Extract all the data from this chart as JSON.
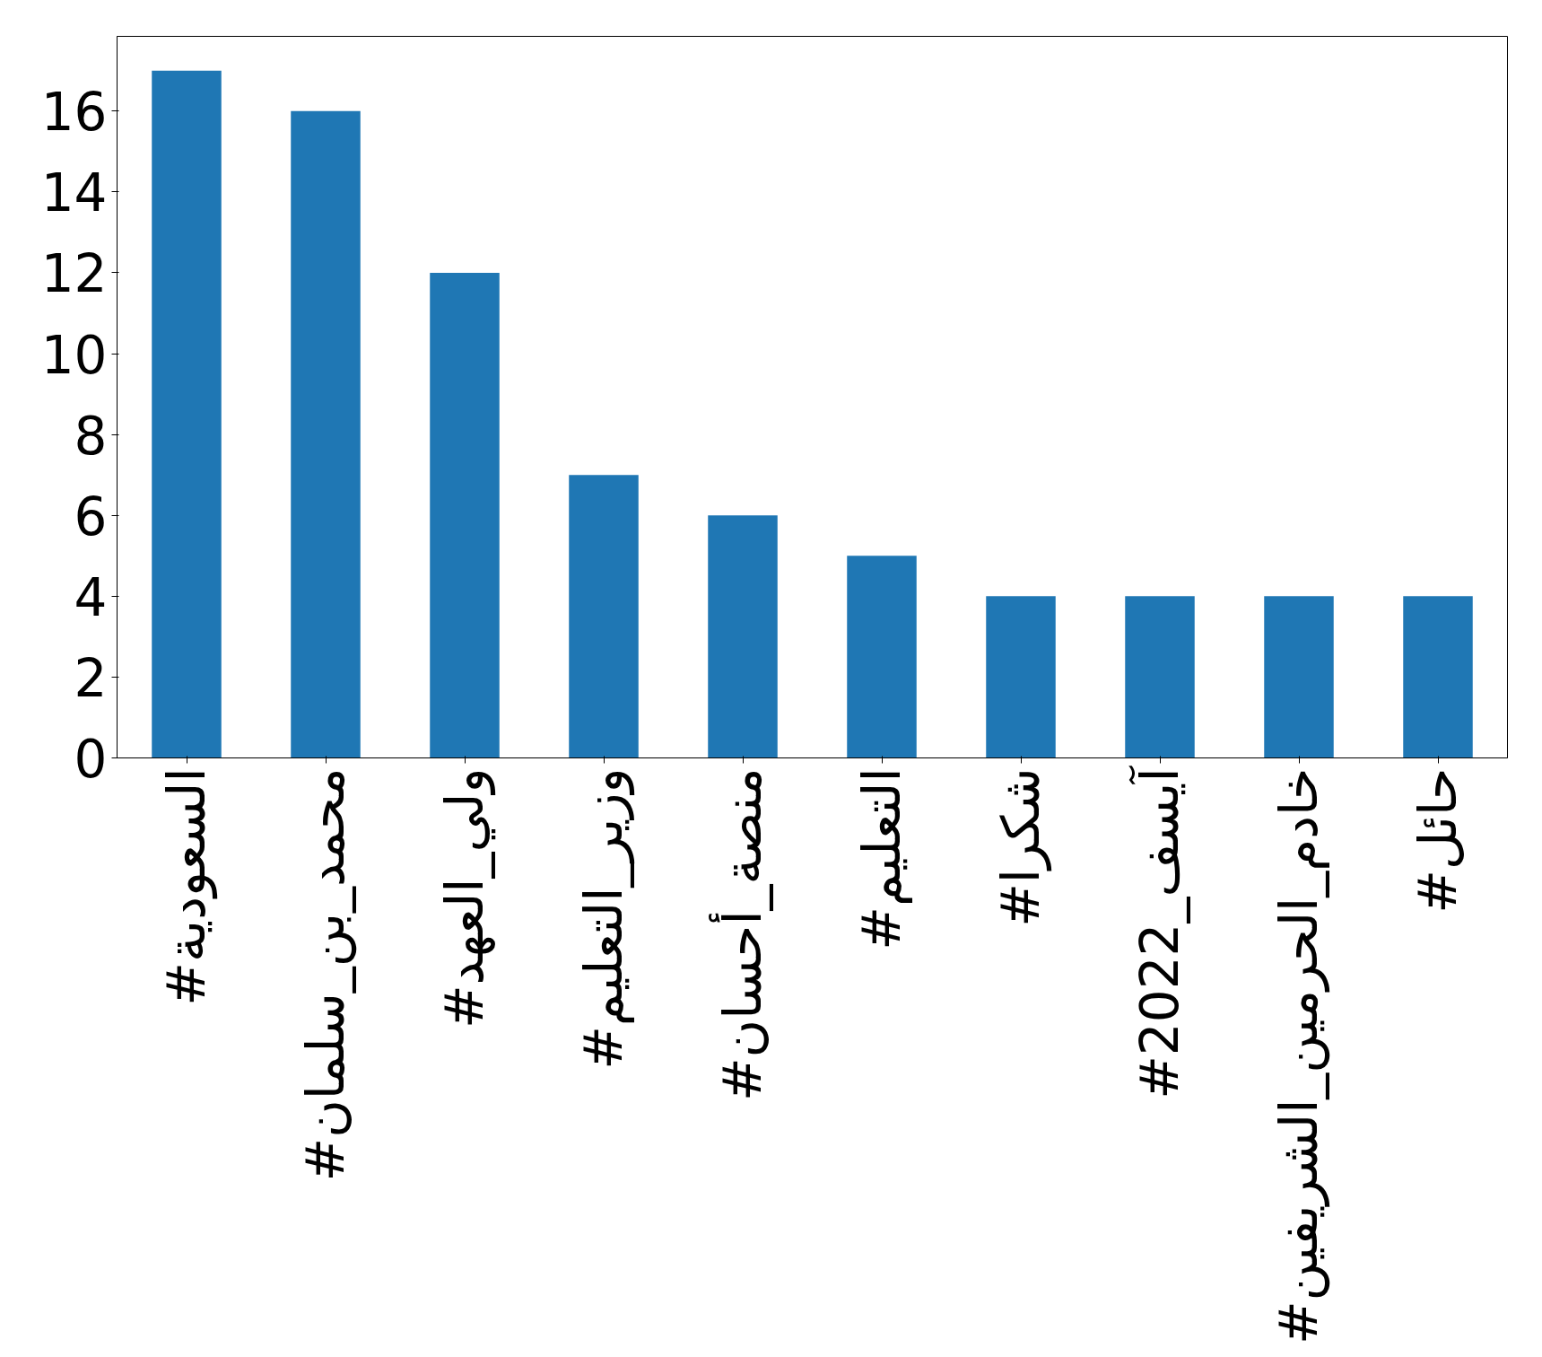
{
  "chart_data": {
    "type": "bar",
    "categories": [
      "#السعودية",
      "#محمد_بن_سلمان",
      "#ولي_العهد",
      "#وزير_التعليم",
      "#منصة_أحسان",
      "#التعليم",
      "#شكرا",
      "#آيسف_2022",
      "#خادم_الحرمين_الشريفين",
      "#حائل"
    ],
    "values": [
      17,
      16,
      12,
      7,
      6,
      5,
      4,
      4,
      4,
      4
    ],
    "color": "#1f77b4",
    "ylim": [
      0,
      17.85
    ],
    "yticks": [
      0,
      2,
      4,
      6,
      8,
      10,
      12,
      14,
      16
    ],
    "grid": false
  }
}
